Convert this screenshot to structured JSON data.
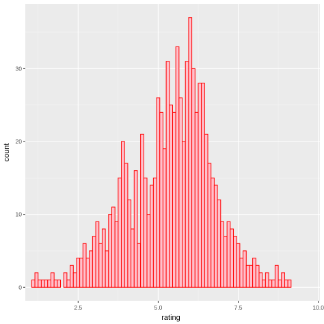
{
  "chart_data": {
    "type": "bar",
    "subtype": "histogram",
    "title": "",
    "xlabel": "rating",
    "ylabel": "count",
    "xlim": [
      0.85,
      10.05
    ],
    "ylim": [
      -1.85,
      38.85
    ],
    "x_ticks": [
      2.5,
      5.0,
      7.5,
      10.0
    ],
    "x_tick_labels": [
      "2.5",
      "5.0",
      "7.5",
      "10.0"
    ],
    "y_ticks": [
      0,
      10,
      20,
      30
    ],
    "y_tick_labels": [
      "0",
      "10",
      "20",
      "30"
    ],
    "grid": true,
    "legend": "none",
    "bin_width": 0.1,
    "bin_x_start": 1.1,
    "values": [
      1,
      2,
      1,
      1,
      1,
      1,
      2,
      1,
      1,
      0,
      2,
      1,
      3,
      2,
      4,
      4,
      6,
      4,
      5,
      7,
      9,
      6,
      8,
      5,
      10,
      11,
      9,
      15,
      20,
      17,
      12,
      8,
      16,
      6,
      21,
      15,
      10,
      14,
      15,
      26,
      24,
      19,
      31,
      25,
      24,
      33,
      26,
      20,
      31,
      37,
      30,
      24,
      28,
      28,
      21,
      17,
      15,
      14,
      12,
      9,
      7,
      9,
      8,
      7,
      6,
      4,
      5,
      3,
      3,
      4,
      3,
      2,
      1,
      2,
      1,
      1,
      3,
      1,
      2,
      1,
      1
    ],
    "colors": {
      "panel_background": "#ebebeb",
      "grid_major": "#ffffff",
      "grid_minor": "#f5f5f5",
      "bar_fill": "#ffc0cb",
      "bar_outline": "#ff0000"
    }
  }
}
